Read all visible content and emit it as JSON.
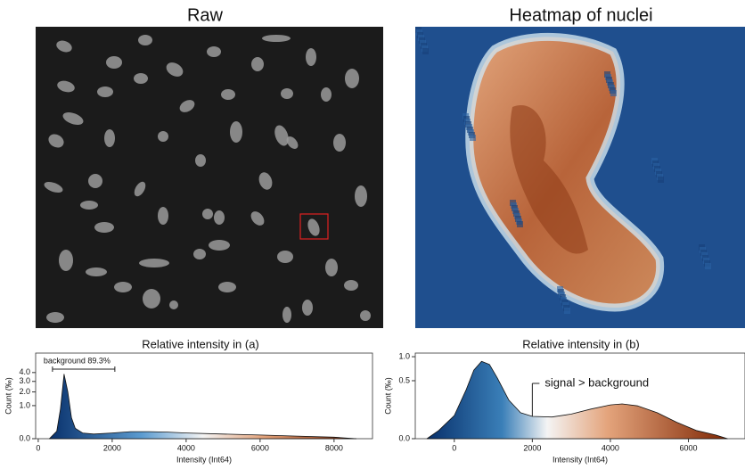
{
  "panels": [
    {
      "title": "Raw"
    },
    {
      "title": "Heatmap of nuclei"
    }
  ],
  "chart_data": [
    {
      "type": "area",
      "title": "Relative intensity in (a)",
      "xlabel": "Intensity (Int64)",
      "ylabel": "Count (‰)",
      "yscale": "sqrt",
      "x": [
        300,
        500,
        600,
        700,
        800,
        900,
        1000,
        1200,
        1500,
        2000,
        2500,
        3000,
        3500,
        4000,
        5000,
        6000,
        7000,
        8000,
        8600
      ],
      "values": [
        0,
        0.05,
        0.8,
        3.8,
        2.0,
        0.4,
        0.1,
        0.03,
        0.02,
        0.03,
        0.045,
        0.045,
        0.04,
        0.03,
        0.02,
        0.012,
        0.006,
        0.002,
        0
      ],
      "xlim": [
        -70,
        9040
      ],
      "xticks": [
        0,
        2000,
        4000,
        6000,
        8000
      ],
      "ylim": [
        0,
        6.7
      ],
      "yticks": [
        {
          "value": 0,
          "label": "0.0"
        },
        {
          "value": 1,
          "label": "1.0"
        },
        {
          "value": 2,
          "label": "2.0"
        },
        {
          "value": 3,
          "label": "3.0"
        },
        {
          "value": 4,
          "label": "4.0"
        }
      ],
      "annotations": [
        {
          "text": "background 89.3%",
          "x": [
            385,
            2072
          ]
        }
      ]
    },
    {
      "type": "area",
      "title": "Relative intensity in (b)",
      "xlabel": "Intensity (Int64)",
      "ylabel": "Count (‰)",
      "yscale": "sqrt",
      "x": [
        -700,
        -400,
        0,
        300,
        500,
        700,
        900,
        1100,
        1400,
        1700,
        2000,
        2500,
        3000,
        3500,
        4000,
        4300,
        4700,
        5200,
        5700,
        6200,
        6700,
        7000
      ],
      "values": [
        0,
        0.01,
        0.08,
        0.35,
        0.7,
        0.89,
        0.82,
        0.55,
        0.22,
        0.1,
        0.074,
        0.07,
        0.09,
        0.13,
        0.17,
        0.18,
        0.16,
        0.1,
        0.04,
        0.01,
        0.002,
        0
      ],
      "xlim": [
        -1000,
        7450
      ],
      "xticks": [
        0,
        2000,
        4000,
        6000
      ],
      "ylim": [
        0,
        1.09
      ],
      "yticks": [
        {
          "value": 0,
          "label": "0.0"
        },
        {
          "value": 0.5,
          "label": "0.5"
        },
        {
          "value": 1,
          "label": "1.0"
        }
      ],
      "annotations": [
        {
          "text": "signal > background",
          "x": 2000
        }
      ]
    }
  ]
}
